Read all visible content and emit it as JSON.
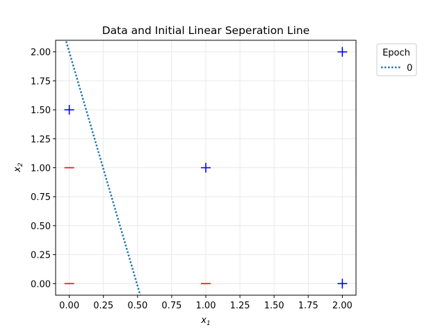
{
  "chart_data": {
    "type": "scatter",
    "title": "Data and Initial Linear Seperation Line",
    "xlabel": "x",
    "xlabel_sub": "1",
    "ylabel": "x",
    "ylabel_sub": "2",
    "xlim": [
      -0.1,
      2.1
    ],
    "ylim": [
      -0.1,
      2.1
    ],
    "xticks": [
      0.0,
      0.25,
      0.5,
      0.75,
      1.0,
      1.25,
      1.5,
      1.75,
      2.0
    ],
    "xtick_labels": [
      "0.00",
      "0.25",
      "0.50",
      "0.75",
      "1.00",
      "1.25",
      "1.50",
      "1.75",
      "2.00"
    ],
    "yticks": [
      0.0,
      0.25,
      0.5,
      0.75,
      1.0,
      1.25,
      1.5,
      1.75,
      2.0
    ],
    "ytick_labels": [
      "0.00",
      "0.25",
      "0.50",
      "0.75",
      "1.00",
      "1.25",
      "1.50",
      "1.75",
      "2.00"
    ],
    "grid": true,
    "points": [
      {
        "x": 0.0,
        "y": 1.5,
        "class": "+"
      },
      {
        "x": 1.0,
        "y": 1.0,
        "class": "+"
      },
      {
        "x": 2.0,
        "y": 2.0,
        "class": "+"
      },
      {
        "x": 2.0,
        "y": 0.0,
        "class": "+"
      },
      {
        "x": 0.0,
        "y": 1.0,
        "class": "-"
      },
      {
        "x": 0.0,
        "y": 0.0,
        "class": "-"
      },
      {
        "x": 1.0,
        "y": 0.0,
        "class": "-"
      }
    ],
    "lines": [
      {
        "name": "0",
        "style": "dotted",
        "x": [
          -0.03,
          0.52
        ],
        "y": [
          2.12,
          -0.1
        ]
      }
    ],
    "legend": {
      "title": "Epoch",
      "placement": "outside-top-right"
    },
    "colors": {
      "positive": "#0000ff",
      "negative": "#ff0000",
      "line": "#1f77b4",
      "grid": "#e8e8e8"
    }
  }
}
